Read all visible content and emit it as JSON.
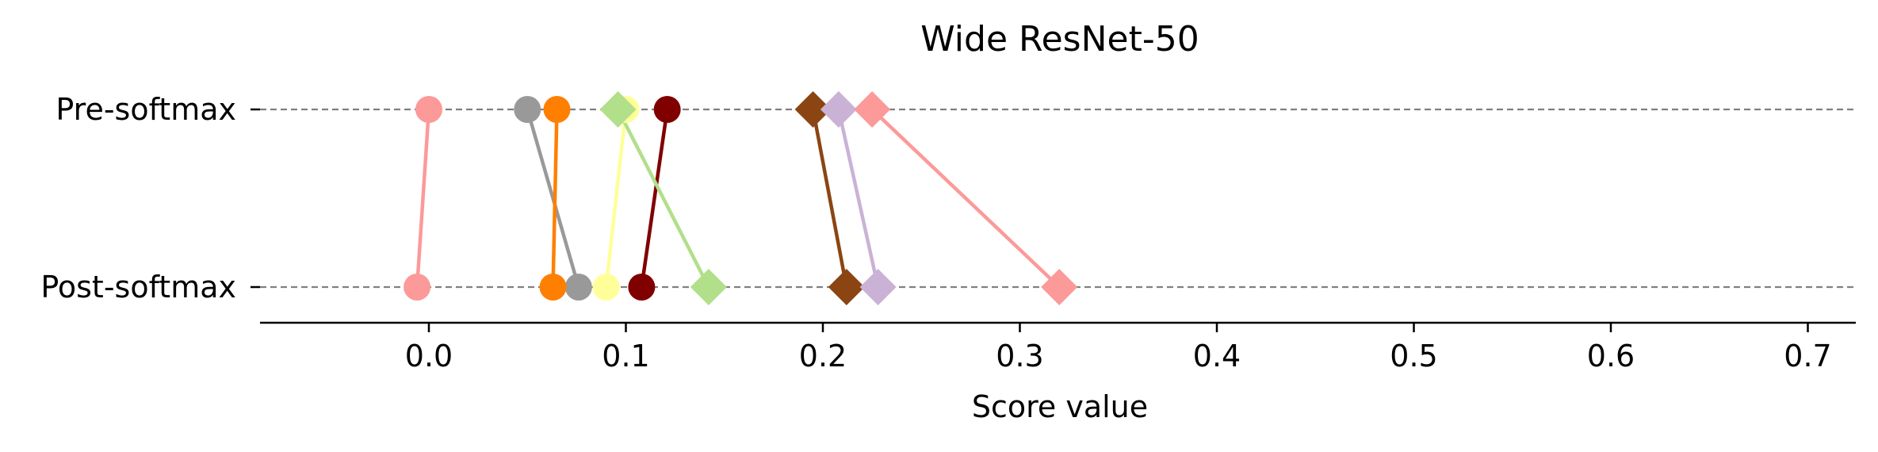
{
  "chart_data": {
    "type": "scatter",
    "title": "Wide ResNet-50",
    "xlabel": "Score value",
    "ylabel": "",
    "xlim": [
      -0.085,
      0.725
    ],
    "xticks": [
      0.0,
      0.1,
      0.2,
      0.3,
      0.4,
      0.5,
      0.6,
      0.7
    ],
    "xtick_labels": [
      "0.0",
      "0.1",
      "0.2",
      "0.3",
      "0.4",
      "0.5",
      "0.6",
      "0.7"
    ],
    "categories": [
      "Pre-softmax",
      "Post-softmax"
    ],
    "grid": "dashed horizontal lines at each category",
    "series": [
      {
        "marker": "circle",
        "color": "#fb9a99",
        "pre": 0.0,
        "post": -0.006
      },
      {
        "marker": "circle",
        "color": "#999999",
        "pre": 0.05,
        "post": 0.076
      },
      {
        "marker": "circle",
        "color": "#ff7f00",
        "pre": 0.065,
        "post": 0.063
      },
      {
        "marker": "circle",
        "color": "#ffff99",
        "pre": 0.1,
        "post": 0.09
      },
      {
        "marker": "circle",
        "color": "#800000",
        "pre": 0.121,
        "post": 0.108
      },
      {
        "marker": "diamond",
        "color": "#b2df8a",
        "pre": 0.096,
        "post": 0.142
      },
      {
        "marker": "diamond",
        "color": "#8b4513",
        "pre": 0.195,
        "post": 0.212
      },
      {
        "marker": "diamond",
        "color": "#cab2d6",
        "pre": 0.208,
        "post": 0.228
      },
      {
        "marker": "diamond",
        "color": "#fb9a99",
        "pre": 0.225,
        "post": 0.32
      }
    ]
  }
}
